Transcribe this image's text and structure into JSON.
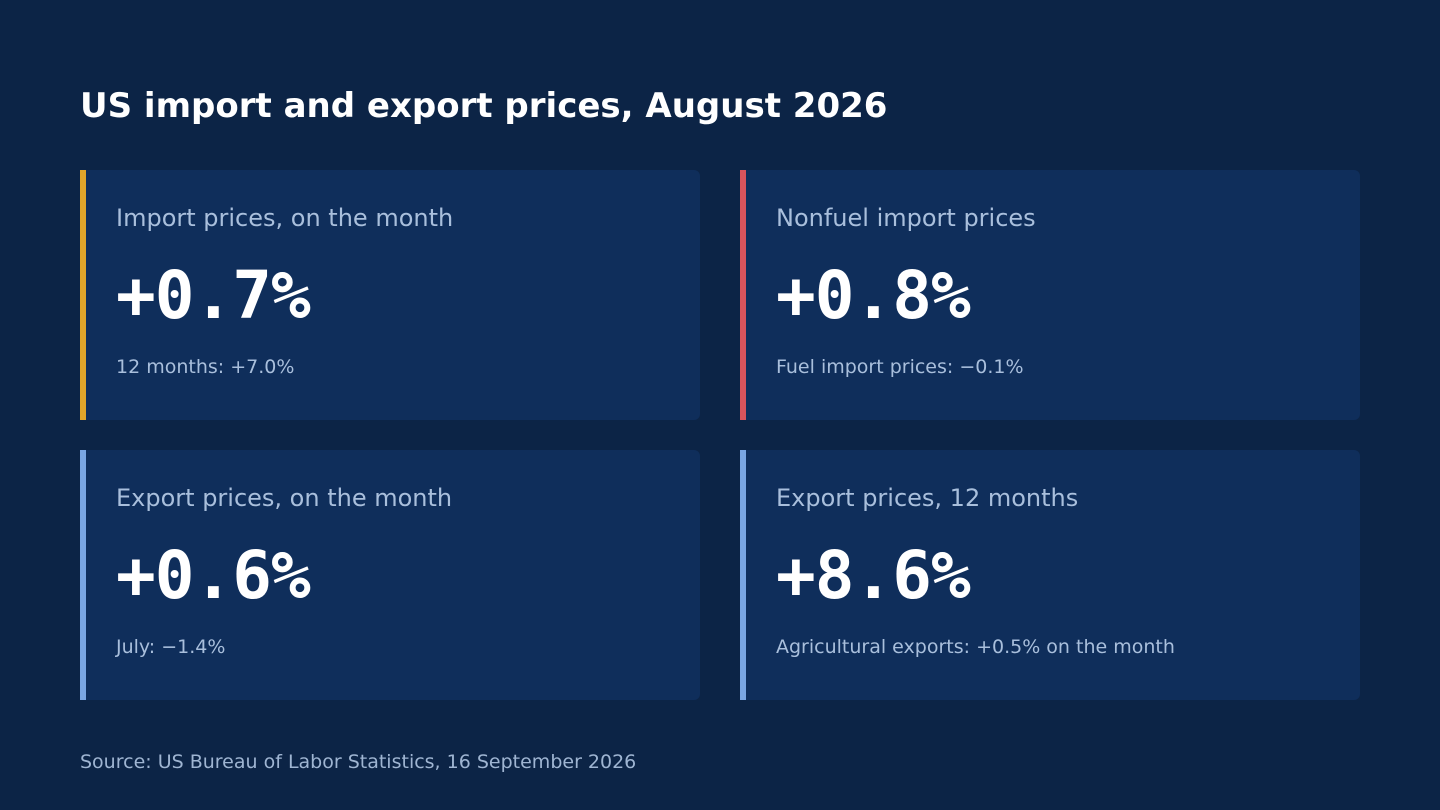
{
  "title": "US import and export prices, August 2026",
  "cards": [
    {
      "label": "Import prices, on the month",
      "value": "+0.7%",
      "note": "12 months: +7.0%",
      "accent": "#e0a52a"
    },
    {
      "label": "Nonfuel import prices",
      "value": "+0.8%",
      "note": "Fuel import prices: −0.1%",
      "accent": "#d9545c"
    },
    {
      "label": "Export prices, on the month",
      "value": "+0.6%",
      "note": "July: −1.4%",
      "accent": "#7aa6e2"
    },
    {
      "label": "Export prices, 12 months",
      "value": "+8.6%",
      "note": "Agricultural exports: +0.5% on the month",
      "accent": "#7aa6e2"
    }
  ],
  "source": "Source: US Bureau of Labor Statistics, 16 September 2026"
}
